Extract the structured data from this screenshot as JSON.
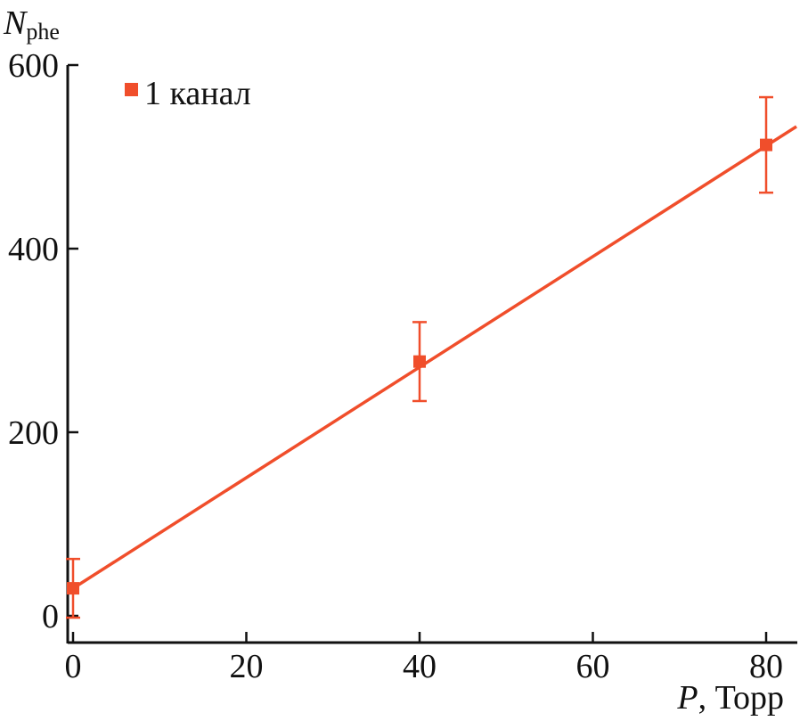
{
  "chart_data": {
    "type": "scatter",
    "xlabel": {
      "var": "P",
      "rest": ", Торр"
    },
    "ylabel": {
      "var": "N",
      "sub": "phe"
    },
    "xlim": [
      -1,
      84
    ],
    "ylim": [
      -30,
      600
    ],
    "xticks": [
      "0",
      "20",
      "40",
      "60",
      "80"
    ],
    "yticks": [
      "0",
      "200",
      "400",
      "600"
    ],
    "legend": {
      "label": "1 канал",
      "position": "top-left"
    },
    "series": [
      {
        "name": "1 канал",
        "color": "#f04e2b",
        "x": [
          0,
          40,
          80
        ],
        "y": [
          30,
          277,
          513
        ],
        "err": [
          32,
          43,
          52
        ]
      }
    ],
    "fit": {
      "type": "linear",
      "x": [
        0,
        83.5
      ],
      "y": [
        30,
        533
      ],
      "color": "#f04e2b"
    }
  }
}
